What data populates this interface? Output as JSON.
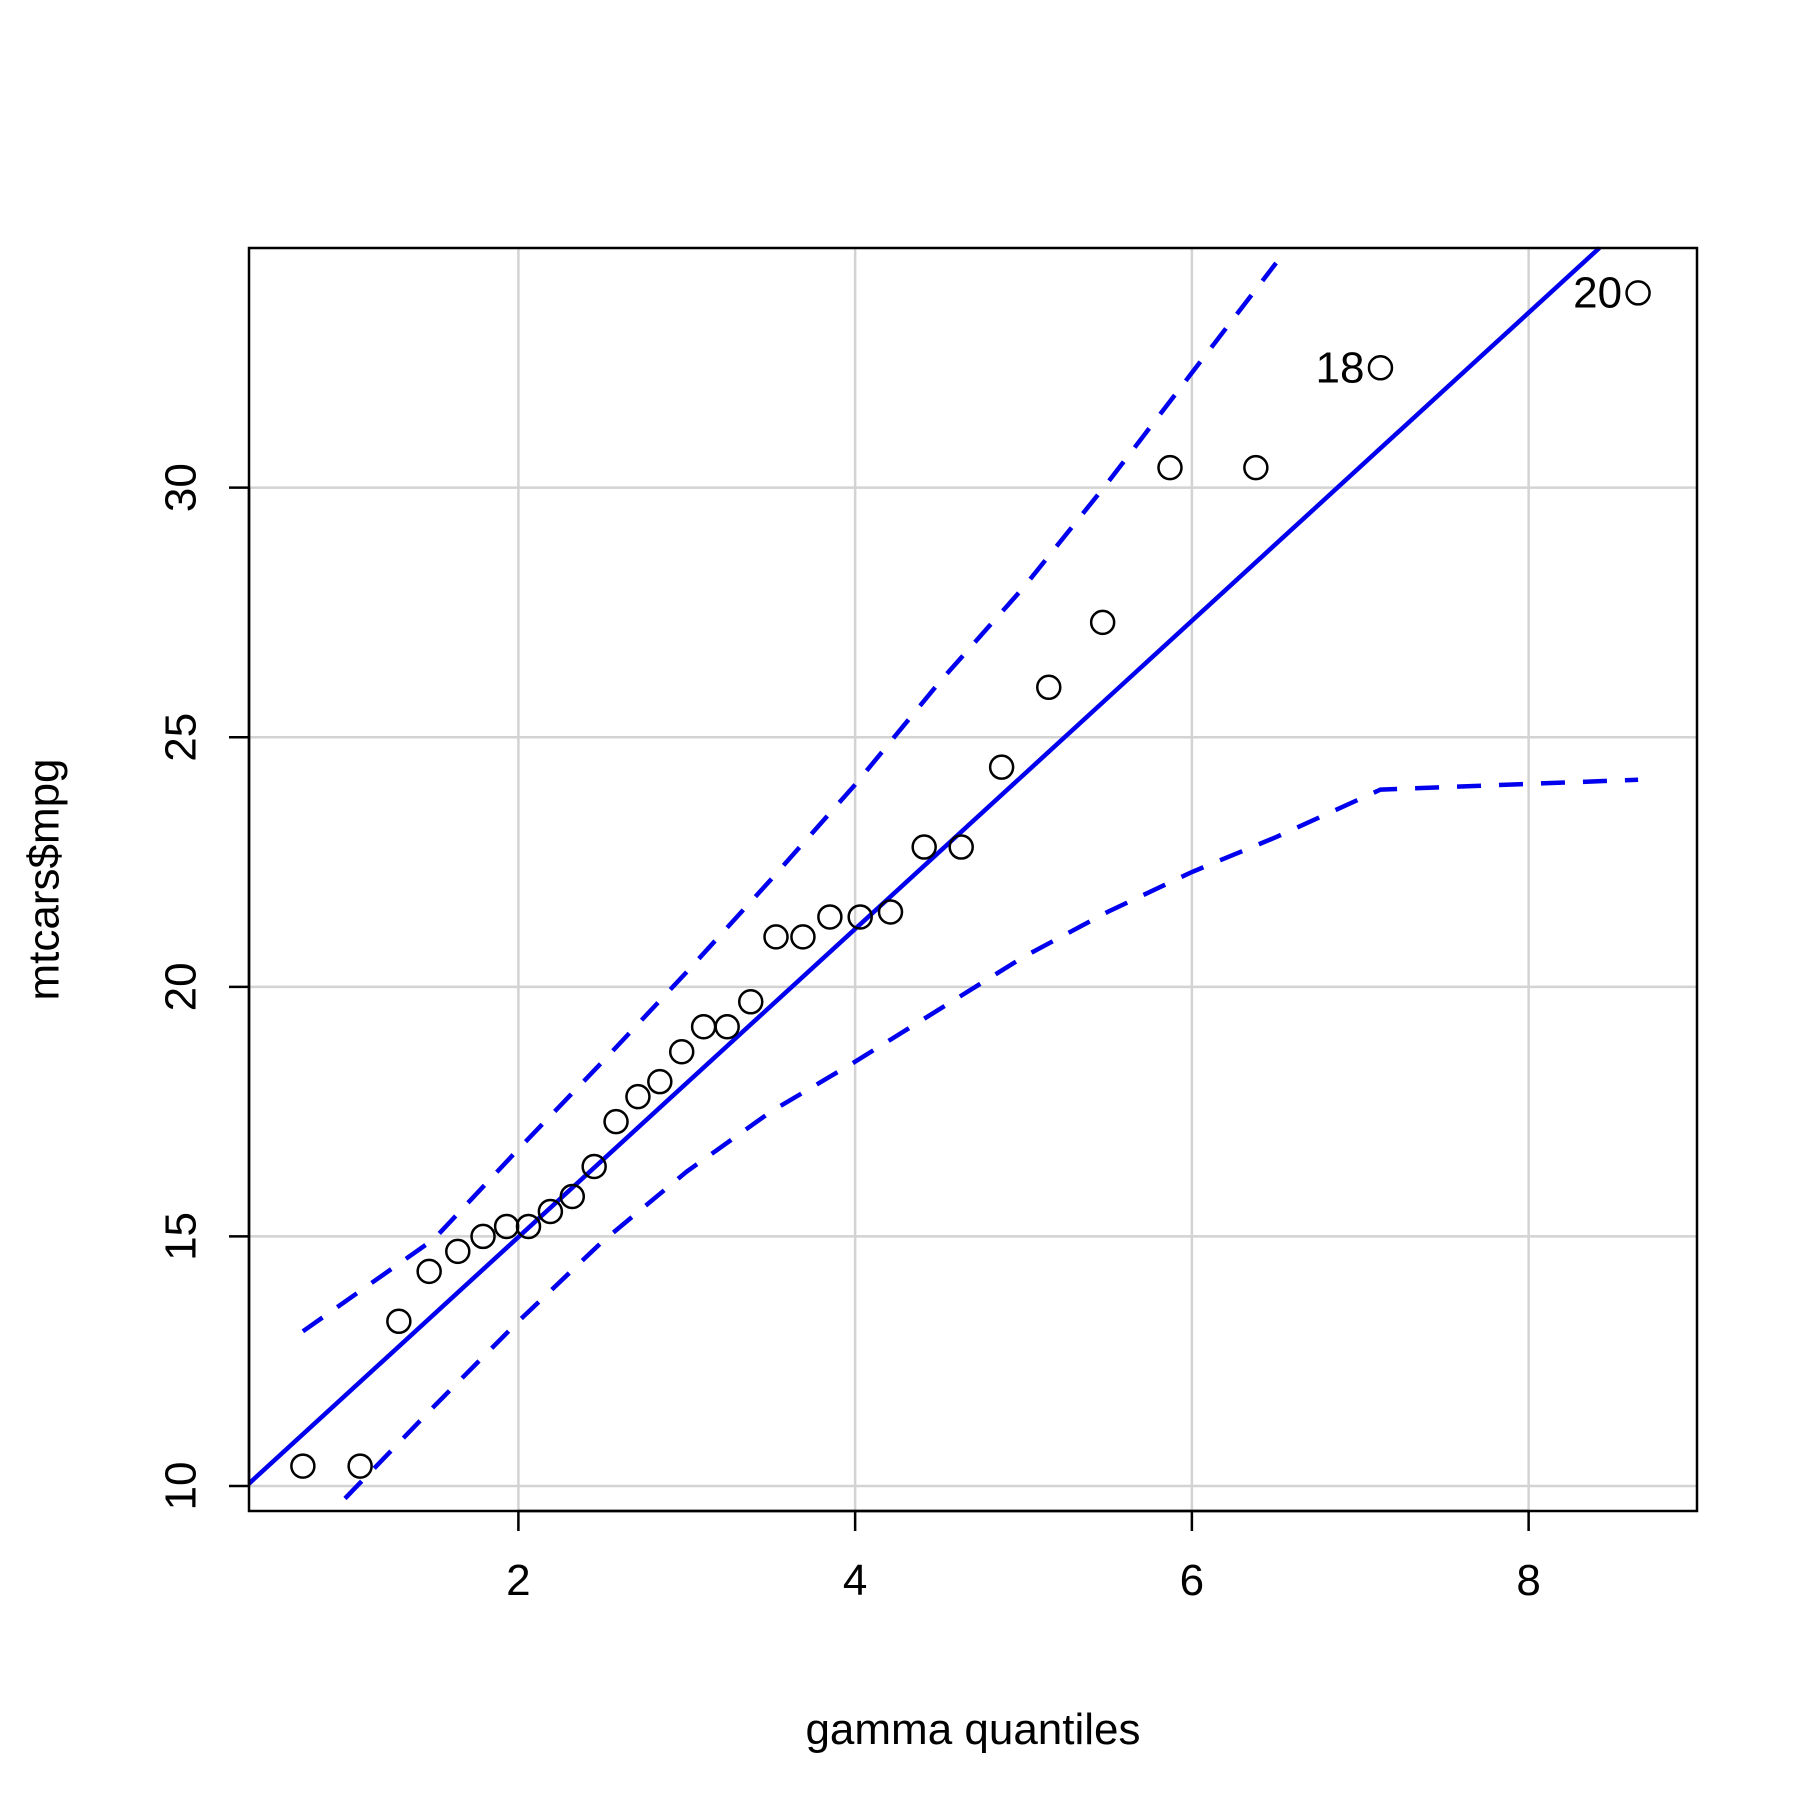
{
  "chart_data": {
    "type": "scatter",
    "title": "",
    "xlabel": "gamma quantiles",
    "ylabel": "mtcars$mpg",
    "xlim": [
      0.4,
      9.0
    ],
    "ylim": [
      9.5,
      34.8
    ],
    "x_ticks": [
      2,
      4,
      6,
      8
    ],
    "y_ticks": [
      10,
      15,
      20,
      25,
      30
    ],
    "grid": true,
    "colors": {
      "points": "#000000",
      "reference_line": "#0000ee",
      "envelope": "#0000ee",
      "grid": "#d3d3d3"
    },
    "points": {
      "x": [
        0.72,
        1.06,
        1.29,
        1.47,
        1.64,
        1.79,
        1.93,
        2.06,
        2.19,
        2.32,
        2.45,
        2.58,
        2.71,
        2.84,
        2.97,
        3.1,
        3.24,
        3.38,
        3.53,
        3.69,
        3.85,
        4.03,
        4.21,
        4.41,
        4.63,
        4.87,
        5.15,
        5.47,
        5.87,
        6.38,
        7.12,
        8.65
      ],
      "y": [
        10.4,
        10.4,
        13.3,
        14.3,
        14.7,
        15.0,
        15.2,
        15.2,
        15.5,
        15.8,
        16.4,
        17.3,
        17.8,
        18.1,
        18.7,
        19.2,
        19.2,
        19.7,
        21.0,
        21.0,
        21.4,
        21.4,
        21.5,
        22.8,
        22.8,
        24.4,
        26.0,
        27.3,
        30.4,
        30.4,
        32.4,
        33.9
      ]
    },
    "reference_line": {
      "x": [
        0.4,
        8.42
      ],
      "y": [
        10.05,
        34.8
      ]
    },
    "upper_envelope": {
      "x": [
        0.72,
        1.5,
        2.0,
        2.5,
        3.0,
        3.5,
        4.0,
        4.5,
        5.0,
        5.5,
        6.0,
        6.5
      ],
      "y": [
        13.1,
        14.95,
        16.75,
        18.5,
        20.3,
        22.15,
        24.05,
        26.1,
        28.0,
        30.1,
        32.3,
        34.5
      ]
    },
    "lower_envelope": {
      "x": [
        0.97,
        1.5,
        2.0,
        2.5,
        3.0,
        3.5,
        4.0,
        4.5,
        5.0,
        5.5,
        6.0,
        6.5,
        7.12,
        8.65
      ],
      "y": [
        9.75,
        11.6,
        13.3,
        14.9,
        16.3,
        17.5,
        18.5,
        19.55,
        20.6,
        21.5,
        22.3,
        23.0,
        23.95,
        24.15
      ]
    },
    "labeled_points": [
      {
        "text": "18",
        "x": 7.12,
        "y": 32.4
      },
      {
        "text": "20",
        "x": 8.65,
        "y": 33.9
      }
    ]
  }
}
